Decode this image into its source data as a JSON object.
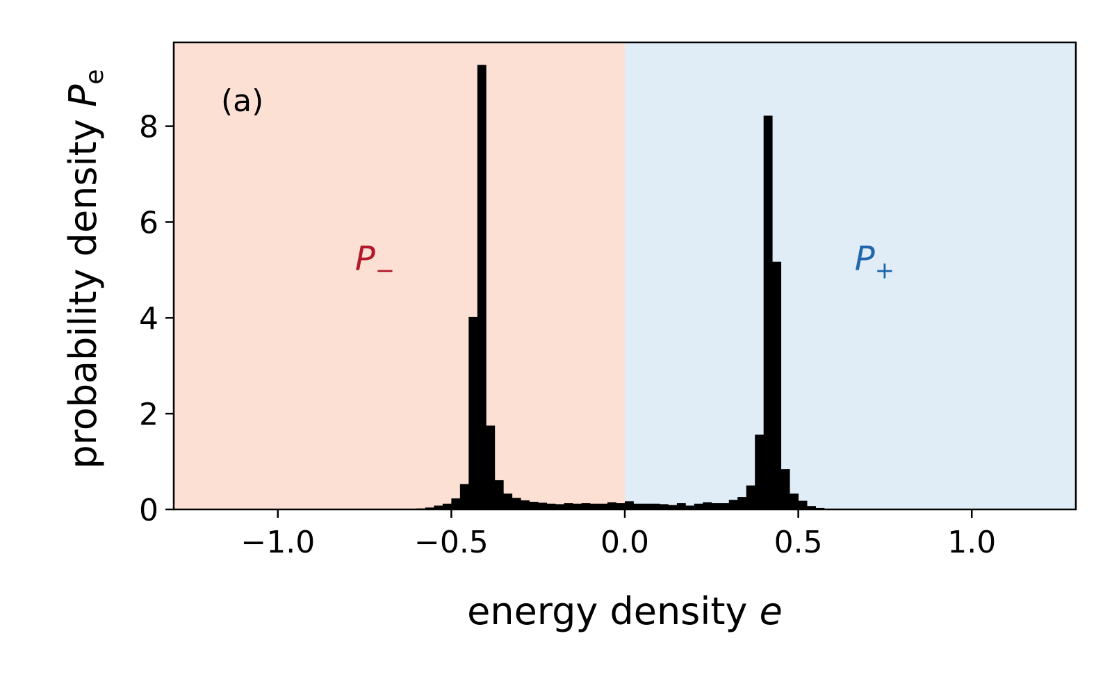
{
  "chart_data": {
    "type": "bar",
    "subtype": "histogram",
    "panel_label": "(a)",
    "xlabel": "energy density",
    "xlabel_var": "e",
    "ylabel": "probability density",
    "ylabel_var": "P",
    "ylabel_sub": "e",
    "xlim": [
      -1.3,
      1.3
    ],
    "ylim": [
      0,
      9.75
    ],
    "xticks": [
      -1.0,
      -0.5,
      0.0,
      0.5,
      1.0
    ],
    "xtick_labels": [
      "−1.0",
      "−0.5",
      "0.0",
      "0.5",
      "1.0"
    ],
    "yticks": [
      0,
      2,
      4,
      6,
      8
    ],
    "ytick_labels": [
      "0",
      "2",
      "4",
      "6",
      "8"
    ],
    "regions": [
      {
        "name": "P_minus",
        "label": "P",
        "sub": "−",
        "x_range": [
          -1.3,
          0.0
        ],
        "fill": "#fde0d4",
        "text_color": "#b2182b",
        "label_x": -0.72,
        "label_y": 5.0
      },
      {
        "name": "P_plus",
        "label": "P",
        "sub": "+",
        "x_range": [
          0.0,
          1.3
        ],
        "fill": "#e0ecf6",
        "text_color": "#2166ac",
        "label_x": 0.72,
        "label_y": 5.0
      }
    ],
    "bin_width": 0.025,
    "bins": [
      {
        "x0": -0.7,
        "value": 0.003
      },
      {
        "x0": -0.675,
        "value": 0.005
      },
      {
        "x0": -0.65,
        "value": 0.007
      },
      {
        "x0": -0.625,
        "value": 0.01
      },
      {
        "x0": -0.6,
        "value": 0.02
      },
      {
        "x0": -0.575,
        "value": 0.04
      },
      {
        "x0": -0.55,
        "value": 0.08
      },
      {
        "x0": -0.525,
        "value": 0.12
      },
      {
        "x0": -0.5,
        "value": 0.23
      },
      {
        "x0": -0.475,
        "value": 0.53
      },
      {
        "x0": -0.45,
        "value": 4.02
      },
      {
        "x0": -0.425,
        "value": 9.28
      },
      {
        "x0": -0.4,
        "value": 1.75
      },
      {
        "x0": -0.375,
        "value": 0.61
      },
      {
        "x0": -0.35,
        "value": 0.33
      },
      {
        "x0": -0.325,
        "value": 0.24
      },
      {
        "x0": -0.3,
        "value": 0.19
      },
      {
        "x0": -0.275,
        "value": 0.16
      },
      {
        "x0": -0.25,
        "value": 0.14
      },
      {
        "x0": -0.225,
        "value": 0.12
      },
      {
        "x0": -0.2,
        "value": 0.11
      },
      {
        "x0": -0.175,
        "value": 0.13
      },
      {
        "x0": -0.15,
        "value": 0.12
      },
      {
        "x0": -0.125,
        "value": 0.13
      },
      {
        "x0": -0.1,
        "value": 0.12
      },
      {
        "x0": -0.075,
        "value": 0.12
      },
      {
        "x0": -0.05,
        "value": 0.15
      },
      {
        "x0": -0.025,
        "value": 0.13
      },
      {
        "x0": 0.0,
        "value": 0.17
      },
      {
        "x0": 0.025,
        "value": 0.12
      },
      {
        "x0": 0.05,
        "value": 0.12
      },
      {
        "x0": 0.075,
        "value": 0.12
      },
      {
        "x0": 0.1,
        "value": 0.11
      },
      {
        "x0": 0.125,
        "value": 0.09
      },
      {
        "x0": 0.15,
        "value": 0.13
      },
      {
        "x0": 0.175,
        "value": 0.08
      },
      {
        "x0": 0.2,
        "value": 0.12
      },
      {
        "x0": 0.225,
        "value": 0.15
      },
      {
        "x0": 0.25,
        "value": 0.13
      },
      {
        "x0": 0.275,
        "value": 0.13
      },
      {
        "x0": 0.3,
        "value": 0.2
      },
      {
        "x0": 0.325,
        "value": 0.26
      },
      {
        "x0": 0.35,
        "value": 0.5
      },
      {
        "x0": 0.375,
        "value": 1.56
      },
      {
        "x0": 0.4,
        "value": 8.22
      },
      {
        "x0": 0.425,
        "value": 5.17
      },
      {
        "x0": 0.45,
        "value": 0.84
      },
      {
        "x0": 0.475,
        "value": 0.33
      },
      {
        "x0": 0.5,
        "value": 0.18
      },
      {
        "x0": 0.525,
        "value": 0.07
      },
      {
        "x0": 0.55,
        "value": 0.03
      },
      {
        "x0": 0.575,
        "value": 0.015
      },
      {
        "x0": 0.6,
        "value": 0.008
      },
      {
        "x0": 0.625,
        "value": 0.004
      }
    ],
    "bar_color": "#000000",
    "grid": false,
    "legend": "none"
  }
}
